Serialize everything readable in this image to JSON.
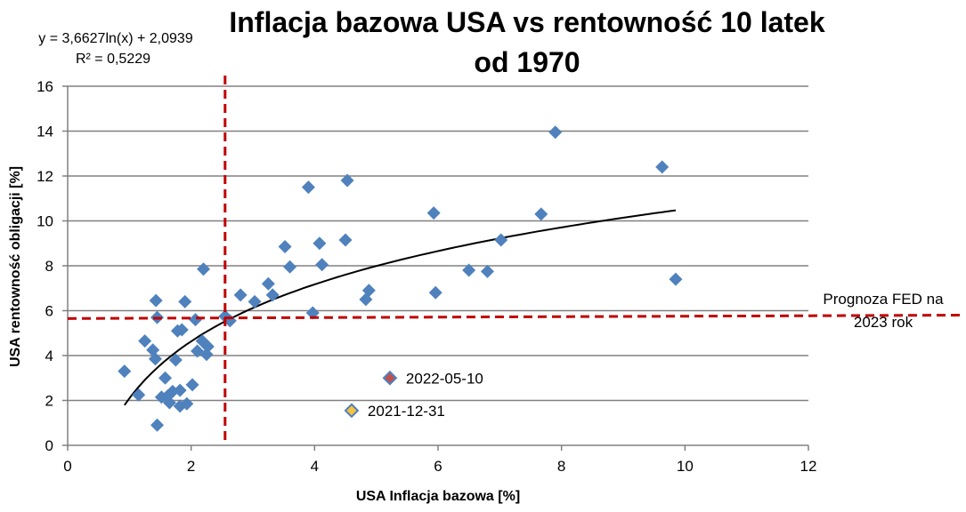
{
  "chart_data": {
    "type": "scatter",
    "title_line1": "Inflacja bazowa USA vs rentowność 10 latek",
    "title_line2": "od 1970",
    "xlabel": "USA Inflacja bazowa [%]",
    "ylabel": "USA rentowność obligacji [%]",
    "xlim": [
      0,
      12
    ],
    "ylim": [
      0,
      16
    ],
    "x_ticks": [
      "0",
      "2",
      "4",
      "6",
      "8",
      "10",
      "12"
    ],
    "y_ticks": [
      "0",
      "2",
      "4",
      "6",
      "8",
      "10",
      "12",
      "14",
      "16"
    ],
    "grid": "horizontal",
    "colors": {
      "points": "#4f81bd",
      "trend": "#000000",
      "reference": "#c00000",
      "highlight_2022": "#c0504d",
      "highlight_2021": "#f5c242",
      "gridlines": "#808080"
    },
    "trendline": {
      "equation": "y = 3,6627ln(x) + 2,0939",
      "r2": "R² = 0,5229",
      "a": 3.6627,
      "b": 2.0939,
      "x_start": 0.92,
      "x_end": 9.85
    },
    "reference_lines": {
      "vertical_x": 2.55,
      "horizontal_y": 5.65,
      "horizontal_y_end": 5.8,
      "horizontal_label_line1": "Prognoza FED na",
      "horizontal_label_line2": "2023 rok"
    },
    "points": [
      {
        "x": 0.92,
        "y": 3.3
      },
      {
        "x": 1.15,
        "y": 2.25
      },
      {
        "x": 1.25,
        "y": 4.65
      },
      {
        "x": 1.38,
        "y": 4.25
      },
      {
        "x": 1.42,
        "y": 3.85
      },
      {
        "x": 1.43,
        "y": 6.45
      },
      {
        "x": 1.45,
        "y": 5.7
      },
      {
        "x": 1.45,
        "y": 0.9
      },
      {
        "x": 1.52,
        "y": 2.15
      },
      {
        "x": 1.58,
        "y": 3.0
      },
      {
        "x": 1.62,
        "y": 2.2
      },
      {
        "x": 1.65,
        "y": 1.9
      },
      {
        "x": 1.7,
        "y": 2.4
      },
      {
        "x": 1.75,
        "y": 3.8
      },
      {
        "x": 1.78,
        "y": 5.1
      },
      {
        "x": 1.82,
        "y": 1.75
      },
      {
        "x": 1.82,
        "y": 2.45
      },
      {
        "x": 1.85,
        "y": 5.15
      },
      {
        "x": 1.9,
        "y": 6.4
      },
      {
        "x": 1.93,
        "y": 1.85
      },
      {
        "x": 2.02,
        "y": 2.7
      },
      {
        "x": 2.07,
        "y": 5.6
      },
      {
        "x": 2.1,
        "y": 4.2
      },
      {
        "x": 2.18,
        "y": 4.65
      },
      {
        "x": 2.2,
        "y": 7.85
      },
      {
        "x": 2.25,
        "y": 4.05
      },
      {
        "x": 2.27,
        "y": 4.4
      },
      {
        "x": 2.55,
        "y": 5.75
      },
      {
        "x": 2.63,
        "y": 5.55
      },
      {
        "x": 2.8,
        "y": 6.7
      },
      {
        "x": 3.03,
        "y": 6.4
      },
      {
        "x": 3.25,
        "y": 7.2
      },
      {
        "x": 3.32,
        "y": 6.7
      },
      {
        "x": 3.52,
        "y": 8.85
      },
      {
        "x": 3.6,
        "y": 7.95
      },
      {
        "x": 3.9,
        "y": 11.5
      },
      {
        "x": 3.97,
        "y": 5.9
      },
      {
        "x": 4.08,
        "y": 9.0
      },
      {
        "x": 4.12,
        "y": 8.05
      },
      {
        "x": 4.5,
        "y": 9.15
      },
      {
        "x": 4.53,
        "y": 11.8
      },
      {
        "x": 4.83,
        "y": 6.5
      },
      {
        "x": 4.88,
        "y": 6.9
      },
      {
        "x": 5.93,
        "y": 10.35
      },
      {
        "x": 5.96,
        "y": 6.8
      },
      {
        "x": 6.5,
        "y": 7.8
      },
      {
        "x": 6.8,
        "y": 7.75
      },
      {
        "x": 7.02,
        "y": 9.15
      },
      {
        "x": 7.67,
        "y": 10.3
      },
      {
        "x": 7.9,
        "y": 13.95
      },
      {
        "x": 9.63,
        "y": 12.4
      },
      {
        "x": 9.85,
        "y": 7.4
      }
    ],
    "highlights": [
      {
        "x": 5.22,
        "y": 3.0,
        "label": "2022-05-10",
        "color": "#c0504d"
      },
      {
        "x": 4.6,
        "y": 1.55,
        "label": "2021-12-31",
        "color": "#f5c242"
      }
    ]
  }
}
